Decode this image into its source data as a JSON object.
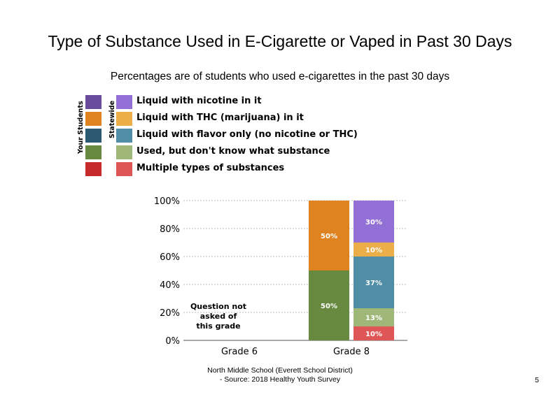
{
  "title": "Type of Substance Used in E-Cigarette or Vaped in Past 30 Days",
  "subtitle": "Percentages are of students who used e-cigarettes in the past 30 days",
  "legend": {
    "your_students_label": "Your Students",
    "statewide_label": "Statewide",
    "items": [
      {
        "label": "Liquid with nicotine in it",
        "own_color": "#6a4c9c",
        "state_color": "#9370d6"
      },
      {
        "label": "Liquid with THC (marijuana) in it",
        "own_color": "#df8320",
        "state_color": "#ecae48"
      },
      {
        "label": "Liquid with flavor only (no nicotine or THC)",
        "own_color": "#2c5a73",
        "state_color": "#4f8ea6"
      },
      {
        "label": "Used, but don't know what substance",
        "own_color": "#678a40",
        "state_color": "#9fb87a"
      },
      {
        "label": "Multiple types of substances",
        "own_color": "#c62a2a",
        "state_color": "#de5656"
      }
    ]
  },
  "chart_data": {
    "type": "bar",
    "stacked": true,
    "categories": [
      "Grade 6",
      "Grade 8"
    ],
    "y_ticks": [
      "0%",
      "20%",
      "40%",
      "60%",
      "80%",
      "100%"
    ],
    "ylim": [
      0,
      100
    ],
    "grid": true,
    "not_asked_note": [
      "Question not",
      "asked of",
      "this grade"
    ],
    "groups": [
      {
        "category": "Grade 6",
        "bars": []
      },
      {
        "category": "Grade 8",
        "bars": [
          {
            "set": "Your Students",
            "segments": [
              {
                "series": "Used, but don't know what substance",
                "value": 50,
                "label": "50%",
                "color": "#678a40"
              },
              {
                "series": "Liquid with THC (marijuana) in it",
                "value": 50,
                "label": "50%",
                "color": "#df8320"
              }
            ]
          },
          {
            "set": "Statewide",
            "segments": [
              {
                "series": "Multiple types of substances",
                "value": 10,
                "label": "10%",
                "color": "#de5656"
              },
              {
                "series": "Used, but don't know what substance",
                "value": 13,
                "label": "13%",
                "color": "#9fb87a"
              },
              {
                "series": "Liquid with flavor only (no nicotine or THC)",
                "value": 37,
                "label": "37%",
                "color": "#4f8ea6"
              },
              {
                "series": "Liquid with THC (marijuana) in it",
                "value": 10,
                "label": "10%",
                "color": "#ecae48"
              },
              {
                "series": "Liquid with nicotine in it",
                "value": 30,
                "label": "30%",
                "color": "#9370d6"
              }
            ]
          }
        ]
      }
    ]
  },
  "footer": {
    "line1": "North Middle School (Everett School District)",
    "line2": "- Source: 2018 Healthy Youth Survey"
  },
  "page_number": "5"
}
